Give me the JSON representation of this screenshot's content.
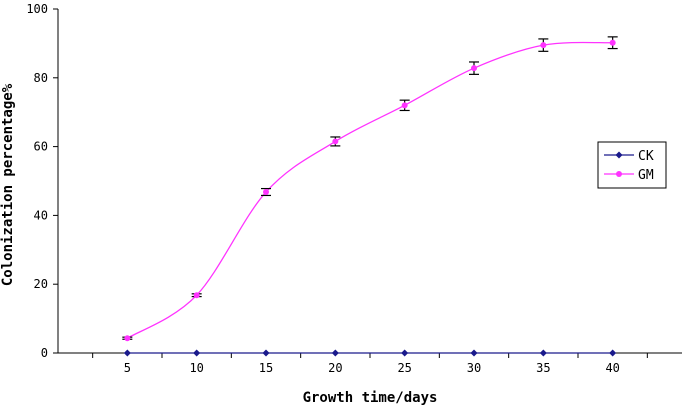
{
  "chart_data": {
    "type": "line",
    "xlabel": "Growth time/days",
    "ylabel": "Colonization percentage%",
    "x": [
      5,
      10,
      15,
      20,
      25,
      30,
      35,
      40
    ],
    "xlim": [
      0,
      45
    ],
    "ylim": [
      0,
      100
    ],
    "x_ticks": [
      5,
      10,
      15,
      20,
      25,
      30,
      35,
      40
    ],
    "y_ticks": [
      0,
      20,
      40,
      60,
      80,
      100
    ],
    "grid": false,
    "legend_position": "right",
    "series": [
      {
        "name": "CK",
        "values": [
          0,
          0,
          0,
          0,
          0,
          0,
          0,
          0
        ],
        "errors": [
          0,
          0,
          0,
          0,
          0,
          0,
          0,
          0
        ],
        "color": "#1a1a8c",
        "marker": "diamond",
        "smooth": false
      },
      {
        "name": "GM",
        "values": [
          4.3,
          16.8,
          46.8,
          61.5,
          72.0,
          82.8,
          89.5,
          90.2
        ],
        "errors": [
          0.3,
          0.4,
          1.0,
          1.3,
          1.5,
          1.8,
          1.8,
          1.7
        ],
        "color": "#ff33ff",
        "marker": "circle",
        "smooth": true
      }
    ]
  }
}
